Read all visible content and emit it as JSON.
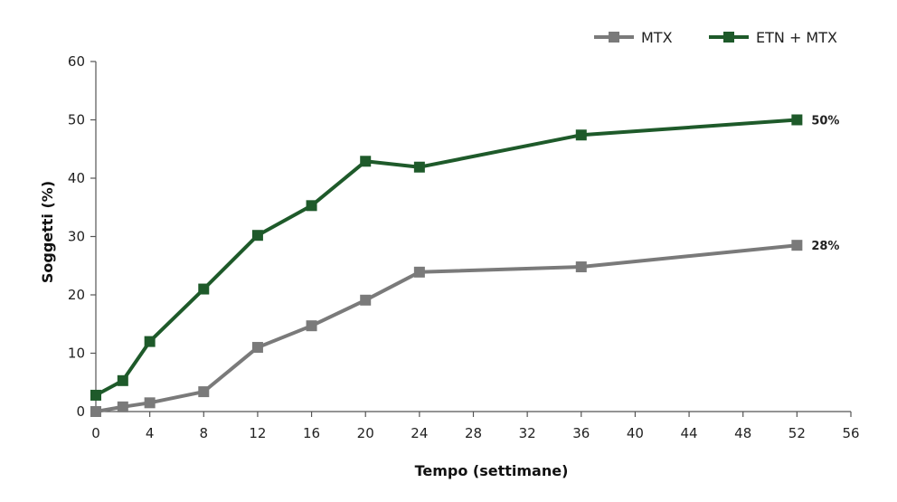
{
  "chart_data": {
    "type": "line",
    "title": "",
    "xlabel": "Tempo (settimane)",
    "ylabel": "Soggetti (%)",
    "xlim": [
      0,
      56
    ],
    "ylim": [
      0,
      60
    ],
    "xticks": [
      0,
      4,
      8,
      12,
      16,
      20,
      24,
      28,
      32,
      36,
      40,
      44,
      48,
      52,
      56
    ],
    "yticks": [
      0,
      10,
      20,
      30,
      40,
      50,
      60
    ],
    "grid": false,
    "legend_position": "top-right",
    "series": [
      {
        "name": "MTX",
        "color": "#7a7a7a",
        "x": [
          0,
          2,
          4,
          8,
          12,
          16,
          20,
          24,
          36,
          52
        ],
        "y": [
          0,
          0.8,
          1.5,
          3.4,
          11,
          14.7,
          19.1,
          23.9,
          24.8,
          28.5
        ],
        "end_label": "28%"
      },
      {
        "name": "ETN + MTX",
        "color": "#1e5a2a",
        "x": [
          0,
          2,
          4,
          8,
          12,
          16,
          20,
          24,
          36,
          52
        ],
        "y": [
          2.8,
          5.3,
          12,
          21,
          30.2,
          35.3,
          42.9,
          41.9,
          47.4,
          50
        ],
        "end_label": "50%"
      }
    ]
  }
}
